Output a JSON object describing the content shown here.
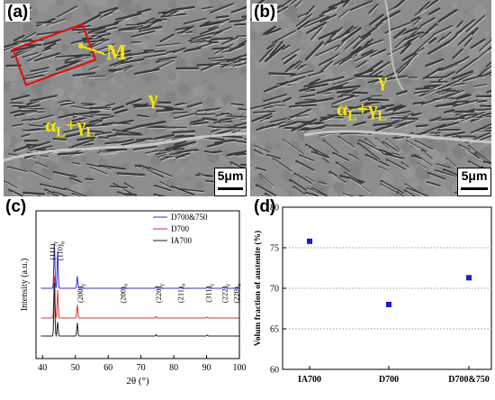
{
  "panels": {
    "a": {
      "label": "(a)",
      "annotations": {
        "m": "M",
        "gamma": "γ",
        "alpha_gamma": "α_L+γ_L"
      },
      "scale_bar": "5μm"
    },
    "b": {
      "label": "(b)",
      "annotations": {
        "gamma": "γ",
        "alpha_gamma": "α_L+γ_L"
      },
      "scale_bar": "5μm"
    },
    "c": {
      "label": "(c)"
    },
    "d": {
      "label": "(d)"
    }
  },
  "chart_data": [
    {
      "type": "line",
      "panel": "c",
      "xlabel": "2θ (°)",
      "ylabel": "Intensity (a.u.)",
      "xlim": [
        38,
        100
      ],
      "xticks": [
        40,
        50,
        60,
        70,
        80,
        90,
        100
      ],
      "legend_position": "top-right",
      "series": [
        {
          "name": "D700&750",
          "color": "#3333cc",
          "offset": 2,
          "peaks": [
            [
              43.6,
              10
            ],
            [
              44.6,
              8
            ],
            [
              50.6,
              2.6
            ],
            [
              74.6,
              0.4
            ],
            [
              82.0,
              0.3
            ],
            [
              90.2,
              0.3
            ],
            [
              95.0,
              0.2
            ]
          ]
        },
        {
          "name": "D700",
          "color": "#e03030",
          "offset": 1,
          "peaks": [
            [
              43.6,
              9.5
            ],
            [
              44.6,
              6
            ],
            [
              50.6,
              2.8
            ],
            [
              74.6,
              0.3
            ],
            [
              90.2,
              0.2
            ]
          ]
        },
        {
          "name": "IA700",
          "color": "#222222",
          "offset": 0,
          "peaks": [
            [
              43.6,
              12
            ],
            [
              44.6,
              3
            ],
            [
              50.6,
              2.8
            ],
            [
              74.6,
              0.3
            ],
            [
              90.2,
              0.2
            ]
          ]
        }
      ],
      "peak_labels": [
        {
          "x": 43.0,
          "text": "(111)γ"
        },
        {
          "x": 45.3,
          "text": "(110)α"
        },
        {
          "x": 51.5,
          "text": "(200)γ"
        },
        {
          "x": 64.5,
          "text": "(200)α"
        },
        {
          "x": 75.3,
          "text": "(220)γ"
        },
        {
          "x": 82.0,
          "text": "(211)α"
        },
        {
          "x": 90.5,
          "text": "(311)γ"
        },
        {
          "x": 95.5,
          "text": "(222)γ"
        },
        {
          "x": 99.0,
          "text": "(220)α"
        }
      ]
    },
    {
      "type": "scatter",
      "panel": "d",
      "ylabel": "Volum fraction of austenite (%)",
      "xlabel": "",
      "categories": [
        "IA700",
        "D700",
        "D700&750"
      ],
      "values": [
        75.8,
        68.0,
        71.3
      ],
      "ylim": [
        60,
        80
      ],
      "yticks": [
        60,
        65,
        70,
        75,
        80
      ],
      "grid": true,
      "marker_color": "#1a1ad6"
    }
  ]
}
